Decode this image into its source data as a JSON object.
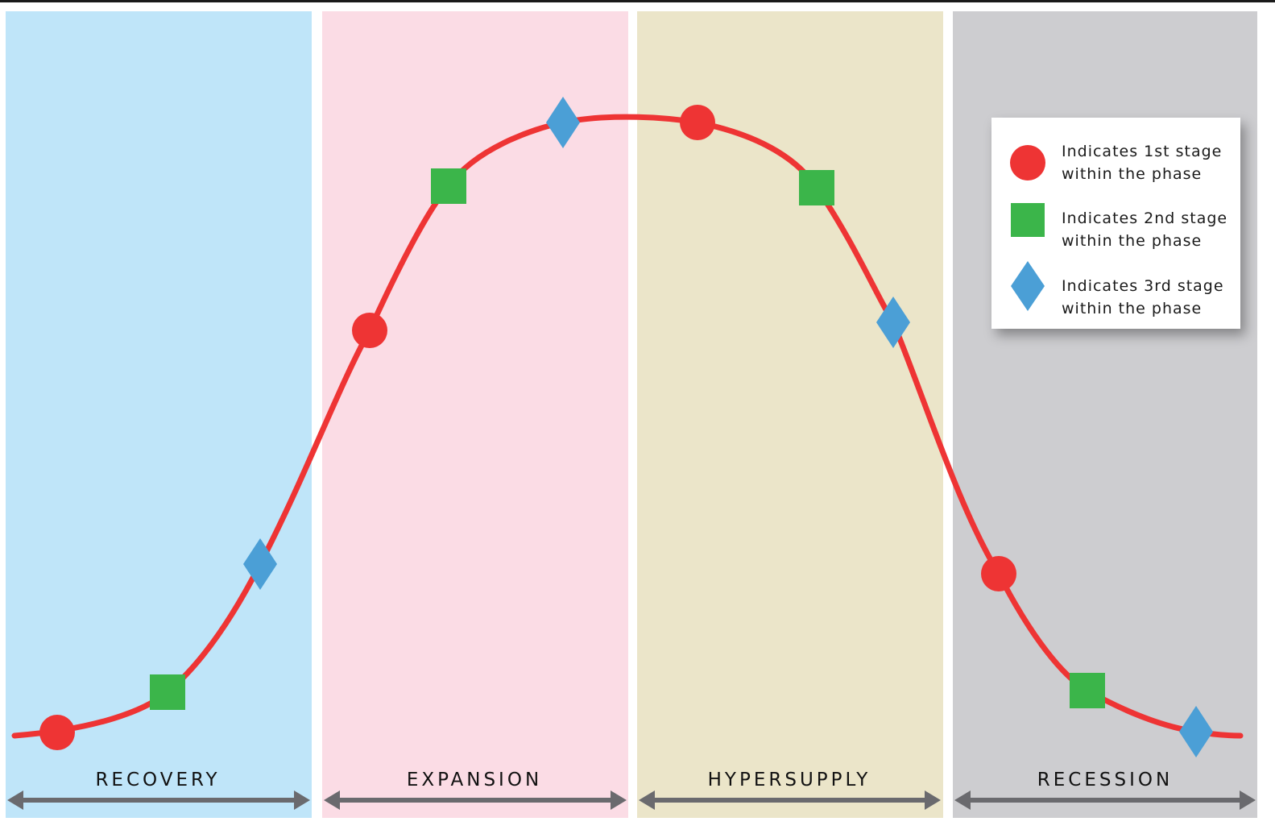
{
  "phases": [
    {
      "label": "RECOVERY",
      "color": "#bfe5f9"
    },
    {
      "label": "EXPANSION",
      "color": "#fbdce5"
    },
    {
      "label": "HYPERSUPPLY",
      "color": "#ebe5c9"
    },
    {
      "label": "RECESSION",
      "color": "#cdcdd0"
    }
  ],
  "legend": {
    "items": [
      {
        "line1": "Indicates 1st stage",
        "line2": "within the phase",
        "shape": "circle",
        "color": "#ee3434"
      },
      {
        "line1": "Indicates 2nd stage",
        "line2": "within the phase",
        "shape": "square",
        "color": "#3bb54a"
      },
      {
        "line1": "Indicates 3rd stage",
        "line2": "within the phase",
        "shape": "diamond",
        "color": "#4b9fd6"
      }
    ]
  },
  "colors": {
    "curve": "#ee3434",
    "arrow": "#6a6a6e",
    "stage1": "#ee3434",
    "stage2": "#3bb54a",
    "stage3": "#4b9fd6"
  }
}
